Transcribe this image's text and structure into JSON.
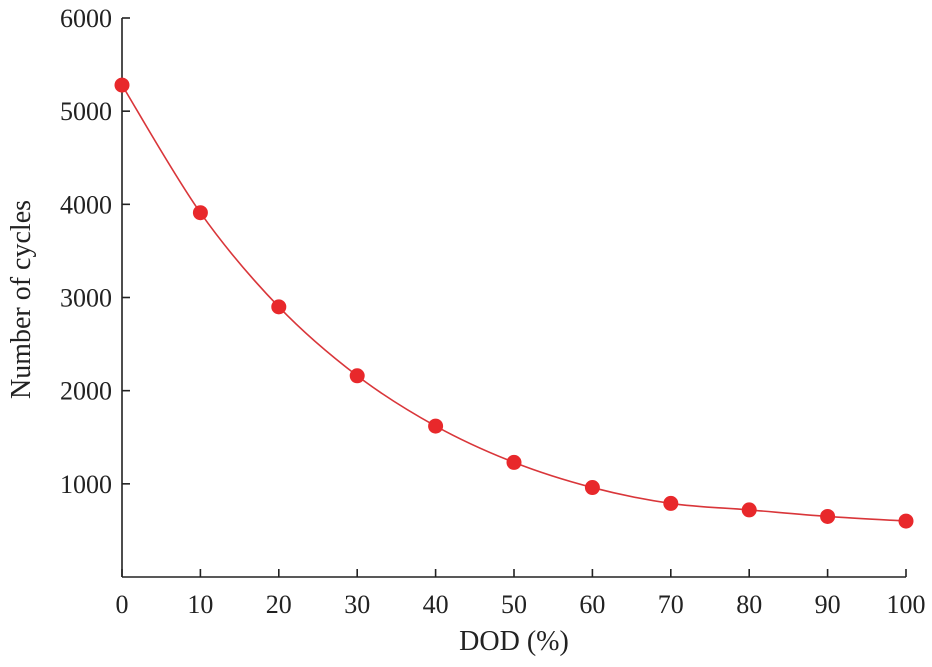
{
  "chart_data": {
    "type": "scatter",
    "title": "",
    "xlabel": "DOD (%)",
    "ylabel": "Number of cycles",
    "xlim": [
      0,
      100
    ],
    "ylim": [
      0,
      6000
    ],
    "x_ticks": [
      0,
      10,
      20,
      30,
      40,
      50,
      60,
      70,
      80,
      90,
      100
    ],
    "y_ticks": [
      1000,
      2000,
      3000,
      4000,
      5000,
      6000
    ],
    "y_tick_labels": [
      "1000",
      "2000",
      "3000",
      "4000",
      "5000",
      "6000"
    ],
    "x_tick_labels": [
      "0",
      "10",
      "20",
      "30",
      "40",
      "50",
      "60",
      "70",
      "80",
      "90",
      "100"
    ],
    "grid": false,
    "legend": "none",
    "series": [
      {
        "x": [
          0,
          10,
          20,
          30,
          40,
          50,
          60,
          70,
          80,
          90,
          100
        ],
        "values": [
          5280,
          3910,
          2900,
          2160,
          1620,
          1230,
          960,
          790,
          720,
          650,
          600
        ],
        "marker_color": "#e8282b",
        "line_color": "#d9363a",
        "line_style": "smooth"
      }
    ]
  }
}
